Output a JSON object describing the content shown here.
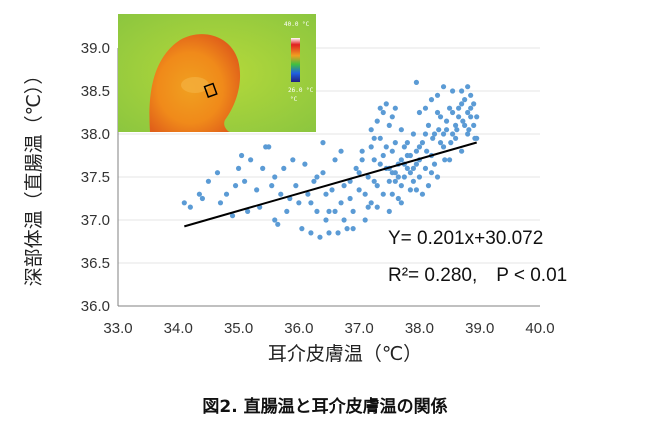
{
  "chart_data": {
    "type": "scatter",
    "xlabel": "耳介皮膚温（℃）",
    "ylabel": "深部体温（直腸温（℃））",
    "xlim": [
      33.0,
      40.0
    ],
    "ylim": [
      36.0,
      39.0
    ],
    "xticks": [
      "33.0",
      "34.0",
      "35.0",
      "36.0",
      "37.0",
      "38.0",
      "39.0",
      "40.0"
    ],
    "yticks": [
      "36.0",
      "36.5",
      "37.0",
      "37.5",
      "38.0",
      "38.5",
      "39.0"
    ],
    "point_color": "#5b9bd5",
    "line_color": "#000000",
    "regression": {
      "slope": 0.201,
      "intercept": 30.072,
      "x_range": [
        34.1,
        38.95
      ],
      "equation_text": "Y= 0.201x+30.072",
      "stats_text": "R²= 0.280,　P < 0.01"
    },
    "points": [
      [
        34.1,
        37.2
      ],
      [
        34.2,
        37.15
      ],
      [
        34.35,
        37.3
      ],
      [
        34.5,
        37.45
      ],
      [
        34.7,
        37.2
      ],
      [
        34.8,
        37.3
      ],
      [
        34.9,
        37.05
      ],
      [
        34.65,
        37.55
      ],
      [
        34.95,
        37.4
      ],
      [
        34.4,
        37.25
      ],
      [
        35.0,
        37.6
      ],
      [
        35.05,
        37.75
      ],
      [
        35.1,
        37.45
      ],
      [
        35.2,
        37.7
      ],
      [
        35.3,
        37.35
      ],
      [
        35.4,
        37.6
      ],
      [
        35.45,
        37.85
      ],
      [
        35.5,
        37.85
      ],
      [
        35.15,
        37.1
      ],
      [
        35.35,
        37.15
      ],
      [
        35.55,
        37.4
      ],
      [
        35.6,
        37.0
      ],
      [
        35.6,
        37.5
      ],
      [
        35.7,
        37.3
      ],
      [
        35.75,
        37.6
      ],
      [
        35.8,
        37.1
      ],
      [
        35.85,
        37.25
      ],
      [
        35.9,
        37.7
      ],
      [
        35.95,
        37.4
      ],
      [
        36.0,
        37.2
      ],
      [
        36.05,
        36.9
      ],
      [
        35.65,
        36.95
      ],
      [
        36.1,
        37.65
      ],
      [
        36.15,
        37.3
      ],
      [
        36.2,
        36.85
      ],
      [
        36.25,
        37.45
      ],
      [
        36.3,
        37.1
      ],
      [
        36.35,
        36.8
      ],
      [
        36.4,
        37.55
      ],
      [
        36.45,
        37.0
      ],
      [
        36.5,
        36.85
      ],
      [
        36.55,
        37.35
      ],
      [
        36.6,
        37.7
      ],
      [
        36.65,
        36.85
      ],
      [
        36.7,
        37.2
      ],
      [
        36.75,
        37.0
      ],
      [
        36.8,
        36.9
      ],
      [
        36.85,
        37.45
      ],
      [
        36.9,
        37.1
      ],
      [
        36.95,
        37.6
      ],
      [
        36.2,
        37.2
      ],
      [
        36.3,
        37.5
      ],
      [
        36.45,
        37.3
      ],
      [
        36.6,
        37.1
      ],
      [
        36.75,
        37.4
      ],
      [
        36.9,
        36.9
      ],
      [
        36.4,
        37.9
      ],
      [
        36.7,
        37.8
      ],
      [
        36.5,
        37.1
      ],
      [
        36.85,
        37.25
      ],
      [
        37.0,
        37.35
      ],
      [
        37.05,
        37.8
      ],
      [
        37.1,
        37.0
      ],
      [
        37.15,
        37.5
      ],
      [
        37.2,
        37.2
      ],
      [
        37.25,
        37.7
      ],
      [
        37.3,
        37.4
      ],
      [
        37.35,
        37.95
      ],
      [
        37.4,
        37.3
      ],
      [
        37.45,
        37.6
      ],
      [
        37.5,
        37.1
      ],
      [
        37.55,
        37.8
      ],
      [
        37.6,
        37.45
      ],
      [
        37.65,
        37.25
      ],
      [
        37.7,
        37.7
      ],
      [
        37.75,
        37.5
      ],
      [
        37.8,
        37.9
      ],
      [
        37.85,
        37.35
      ],
      [
        37.9,
        37.6
      ],
      [
        37.95,
        37.8
      ],
      [
        37.0,
        37.55
      ],
      [
        37.1,
        37.3
      ],
      [
        37.2,
        37.85
      ],
      [
        37.3,
        37.15
      ],
      [
        37.4,
        37.75
      ],
      [
        37.5,
        37.45
      ],
      [
        37.6,
        37.9
      ],
      [
        37.7,
        37.2
      ],
      [
        37.8,
        37.6
      ],
      [
        37.9,
        38.0
      ],
      [
        37.05,
        37.7
      ],
      [
        37.15,
        37.15
      ],
      [
        37.25,
        37.45
      ],
      [
        37.35,
        37.65
      ],
      [
        37.45,
        37.85
      ],
      [
        37.55,
        37.3
      ],
      [
        37.65,
        37.65
      ],
      [
        37.75,
        37.85
      ],
      [
        37.85,
        37.55
      ],
      [
        37.95,
        37.35
      ],
      [
        37.2,
        38.05
      ],
      [
        37.3,
        38.15
      ],
      [
        37.4,
        38.25
      ],
      [
        37.5,
        38.1
      ],
      [
        37.6,
        38.3
      ],
      [
        37.7,
        38.05
      ],
      [
        37.45,
        38.35
      ],
      [
        37.35,
        38.3
      ],
      [
        37.55,
        38.2
      ],
      [
        37.25,
        37.95
      ],
      [
        38.0,
        37.5
      ],
      [
        38.05,
        37.9
      ],
      [
        38.1,
        37.6
      ],
      [
        38.15,
        38.1
      ],
      [
        38.2,
        37.75
      ],
      [
        38.25,
        38.0
      ],
      [
        38.3,
        37.5
      ],
      [
        38.35,
        38.2
      ],
      [
        38.4,
        37.85
      ],
      [
        38.45,
        38.05
      ],
      [
        38.5,
        37.7
      ],
      [
        38.55,
        38.25
      ],
      [
        38.6,
        37.95
      ],
      [
        38.65,
        38.3
      ],
      [
        38.7,
        37.8
      ],
      [
        38.75,
        38.4
      ],
      [
        38.8,
        38.0
      ],
      [
        38.85,
        38.2
      ],
      [
        38.9,
        38.1
      ],
      [
        38.95,
        37.95
      ],
      [
        38.0,
        37.7
      ],
      [
        38.1,
        38.0
      ],
      [
        38.2,
        37.55
      ],
      [
        38.3,
        38.25
      ],
      [
        38.4,
        38.0
      ],
      [
        38.5,
        38.3
      ],
      [
        38.6,
        38.1
      ],
      [
        38.7,
        38.35
      ],
      [
        38.8,
        38.25
      ],
      [
        38.9,
        38.35
      ],
      [
        38.05,
        37.3
      ],
      [
        38.15,
        37.4
      ],
      [
        38.25,
        37.65
      ],
      [
        38.35,
        37.9
      ],
      [
        38.45,
        38.15
      ],
      [
        38.55,
        38.0
      ],
      [
        38.65,
        38.2
      ],
      [
        38.75,
        38.1
      ],
      [
        38.85,
        38.3
      ],
      [
        38.95,
        38.2
      ],
      [
        38.0,
        38.25
      ],
      [
        38.1,
        38.3
      ],
      [
        38.2,
        38.4
      ],
      [
        38.3,
        38.45
      ],
      [
        38.55,
        38.5
      ],
      [
        38.7,
        38.5
      ],
      [
        38.85,
        38.45
      ],
      [
        37.95,
        38.6
      ],
      [
        38.4,
        38.55
      ],
      [
        38.8,
        38.55
      ],
      [
        38.0,
        37.85
      ],
      [
        38.12,
        37.8
      ],
      [
        38.22,
        37.95
      ],
      [
        38.32,
        38.05
      ],
      [
        38.42,
        37.7
      ],
      [
        38.52,
        37.9
      ],
      [
        38.62,
        38.05
      ],
      [
        38.72,
        38.15
      ],
      [
        38.82,
        38.05
      ],
      [
        38.92,
        37.95
      ],
      [
        37.5,
        37.6
      ],
      [
        37.6,
        37.55
      ],
      [
        37.7,
        37.4
      ],
      [
        37.8,
        37.75
      ],
      [
        37.9,
        37.45
      ],
      [
        37.85,
        37.75
      ],
      [
        37.75,
        37.65
      ],
      [
        37.65,
        37.5
      ],
      [
        37.55,
        37.55
      ],
      [
        37.95,
        37.65
      ]
    ]
  },
  "caption": "図2. 直腸温と耳介皮膚温の関係",
  "inset": {
    "scale_top": "40.0 °C",
    "scale_bottom": "26.0 °C",
    "scale_unit": "°C"
  }
}
